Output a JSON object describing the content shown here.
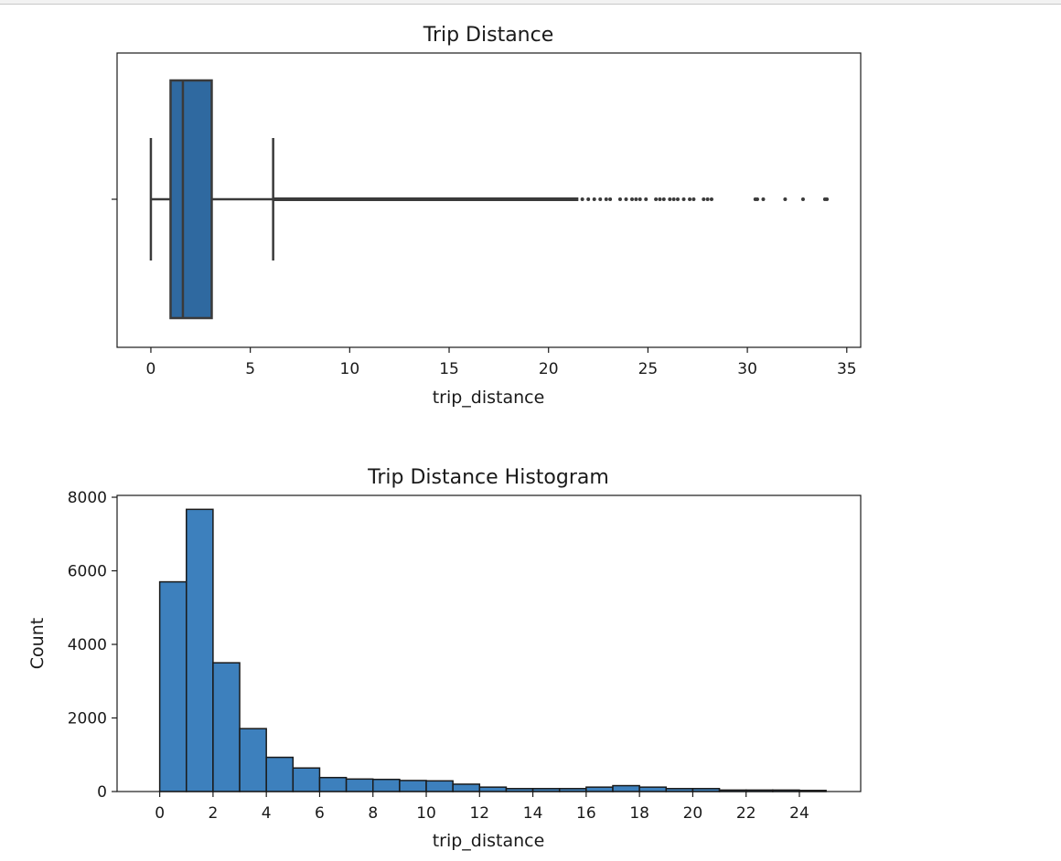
{
  "colors": {
    "box_fill": "#2f69a0",
    "hist_fill": "#3d80bd",
    "edge": "#1a1a1a",
    "line": "#3a3a3a",
    "text": "#1a1a1a"
  },
  "chart_data": [
    {
      "type": "boxplot",
      "title": "Trip Distance",
      "xlabel": "trip_distance",
      "ylabel": "",
      "xlim": [
        -1.7,
        35.7
      ],
      "xticks": [
        0,
        5,
        10,
        15,
        20,
        25,
        30,
        35
      ],
      "box": {
        "whisker_low": 0.0,
        "q1": 0.99,
        "median": 1.61,
        "q3": 3.06,
        "whisker_high": 6.15
      },
      "outliers": [
        6.2,
        6.5,
        6.9,
        7.3,
        7.8,
        8.3,
        8.8,
        9.3,
        9.9,
        10.5,
        11.1,
        11.7,
        12.3,
        12.9,
        13.5,
        14.1,
        14.7,
        15.3,
        15.9,
        16.5,
        17.1,
        17.7,
        18.3,
        18.9,
        19.5,
        20.1,
        20.6,
        21.0,
        21.4,
        21.7,
        22.0,
        22.3,
        22.6,
        22.9,
        23.1,
        23.6,
        23.9,
        24.2,
        24.4,
        24.6,
        24.9,
        25.4,
        25.6,
        25.8,
        26.1,
        26.3,
        26.5,
        26.8,
        27.1,
        27.3,
        27.8,
        28.0,
        28.2,
        30.4,
        30.5,
        30.8,
        31.9,
        32.8,
        33.9,
        34.0
      ]
    },
    {
      "type": "bar",
      "title": "Trip Distance Histogram",
      "xlabel": "trip_distance",
      "ylabel": "Count",
      "xlim": [
        -1.6,
        26.3
      ],
      "ylim": [
        0,
        8050
      ],
      "xticks": [
        0,
        2,
        4,
        6,
        8,
        10,
        12,
        14,
        16,
        18,
        20,
        22,
        24
      ],
      "yticks": [
        0,
        2000,
        4000,
        6000,
        8000
      ],
      "bin_edges": [
        0,
        1,
        2,
        3,
        4,
        5,
        6,
        7,
        8,
        9,
        10,
        11,
        12,
        13,
        14,
        15,
        16,
        17,
        18,
        19,
        20,
        21,
        22,
        23,
        24,
        25
      ],
      "values": [
        5700,
        7670,
        3500,
        1710,
        930,
        640,
        380,
        340,
        330,
        300,
        290,
        200,
        120,
        80,
        80,
        80,
        120,
        160,
        120,
        80,
        80,
        40,
        40,
        40,
        30
      ]
    }
  ]
}
